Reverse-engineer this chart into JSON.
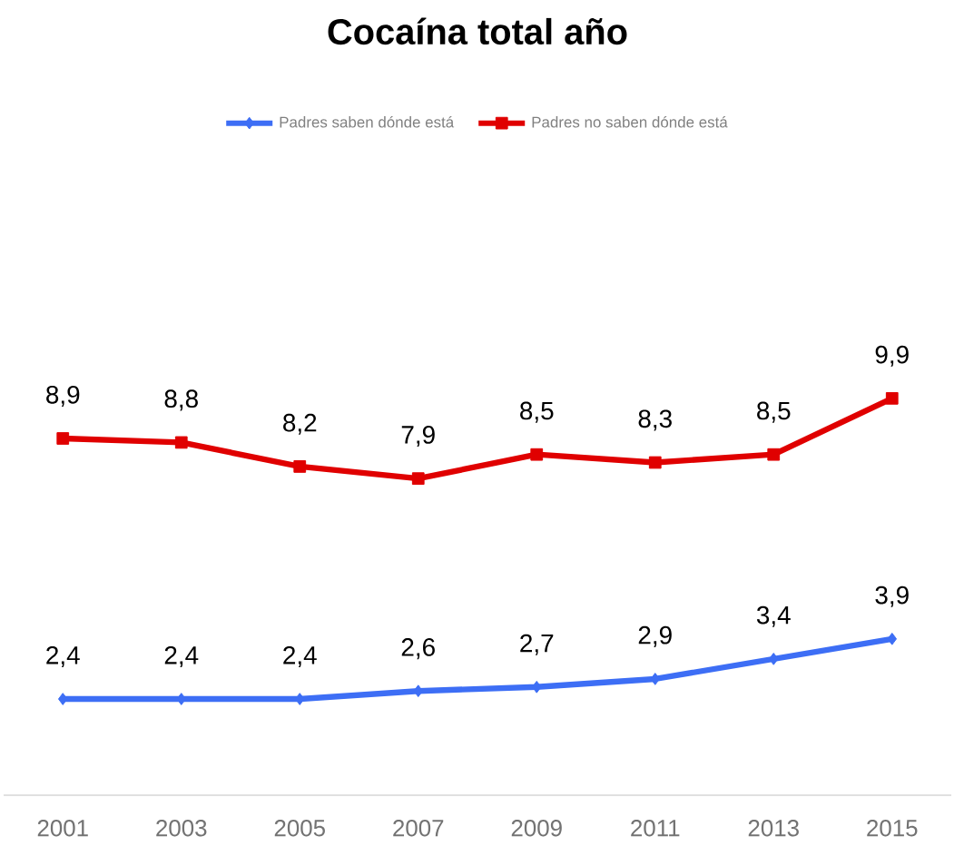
{
  "chart_data": {
    "type": "line",
    "title": "Cocaína total año",
    "categories": [
      "2001",
      "2003",
      "2005",
      "2007",
      "2009",
      "2011",
      "2013",
      "2015"
    ],
    "series": [
      {
        "name": "Padres saben dónde está",
        "color": "#3d6ef5",
        "marker": "diamond",
        "values": [
          2.4,
          2.4,
          2.4,
          2.6,
          2.7,
          2.9,
          3.4,
          3.9
        ],
        "value_labels": [
          "2,4",
          "2,4",
          "2,4",
          "2,6",
          "2,7",
          "2,9",
          "3,4",
          "3,9"
        ]
      },
      {
        "name": "Padres no saben dónde está",
        "color": "#e00000",
        "marker": "square",
        "values": [
          8.9,
          8.8,
          8.2,
          7.9,
          8.5,
          8.3,
          8.5,
          9.9
        ],
        "value_labels": [
          "8,9",
          "8,8",
          "8,2",
          "7,9",
          "8,5",
          "8,3",
          "8,5",
          "9,9"
        ]
      }
    ],
    "legend": "top",
    "grid": false,
    "line_style": "solid"
  }
}
